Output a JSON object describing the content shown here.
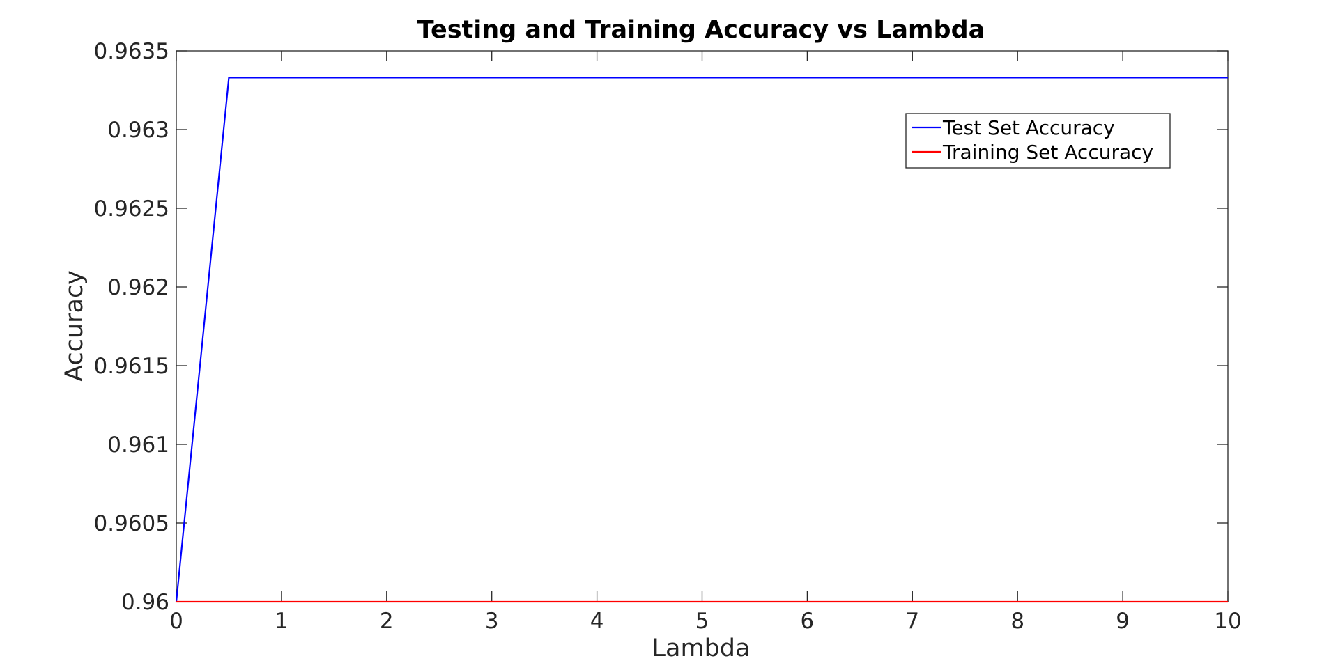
{
  "chart_data": {
    "type": "line",
    "title": "Testing and Training Accuracy vs Lambda",
    "xlabel": "Lambda",
    "ylabel": "Accuracy",
    "xlim": [
      0,
      10
    ],
    "ylim": [
      0.96,
      0.9635
    ],
    "xticks": [
      "0",
      "1",
      "2",
      "3",
      "4",
      "5",
      "6",
      "7",
      "8",
      "9",
      "10"
    ],
    "yticks": [
      "0.96",
      "0.9605",
      "0.961",
      "0.9615",
      "0.962",
      "0.9625",
      "0.963",
      "0.9635"
    ],
    "grid": false,
    "legend_position": "top-right",
    "series": [
      {
        "name": "Test Set Accuracy",
        "color": "#0000ff",
        "x": [
          0,
          0.5,
          1,
          1.5,
          2,
          2.5,
          3,
          3.5,
          4,
          4.5,
          5,
          5.5,
          6,
          6.5,
          7,
          7.5,
          8,
          8.5,
          9,
          9.5,
          10
        ],
        "y": [
          0.96,
          0.96333,
          0.96333,
          0.96333,
          0.96333,
          0.96333,
          0.96333,
          0.96333,
          0.96333,
          0.96333,
          0.96333,
          0.96333,
          0.96333,
          0.96333,
          0.96333,
          0.96333,
          0.96333,
          0.96333,
          0.96333,
          0.96333,
          0.96333
        ]
      },
      {
        "name": "Training Set Accuracy",
        "color": "#ff0000",
        "x": [
          0,
          0.5,
          1,
          1.5,
          2,
          2.5,
          3,
          3.5,
          4,
          4.5,
          5,
          5.5,
          6,
          6.5,
          7,
          7.5,
          8,
          8.5,
          9,
          9.5,
          10
        ],
        "y": [
          0.96,
          0.96,
          0.96,
          0.96,
          0.96,
          0.96,
          0.96,
          0.96,
          0.96,
          0.96,
          0.96,
          0.96,
          0.96,
          0.96,
          0.96,
          0.96,
          0.96,
          0.96,
          0.96,
          0.96,
          0.96
        ]
      }
    ]
  }
}
